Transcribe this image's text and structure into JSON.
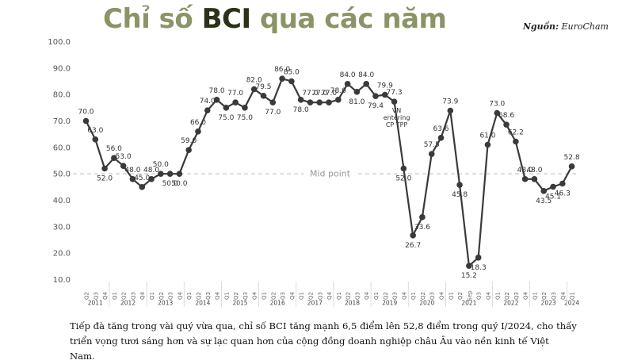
{
  "header": {
    "title_part1": "Chỉ số ",
    "title_part2": "BCI",
    "title_part3": " qua các năm",
    "source_label": "Nguồn:",
    "source_value": "EuroCham"
  },
  "caption": "Tiếp đà tăng trong vài quý vừa qua, chỉ số BCI tăng mạnh 6,5 điểm lên 52,8 điểm trong quý I/2024, cho thấy triển vọng tươi sáng hơn và sự lạc quan hơn của cộng đồng doanh nghiệp châu Âu vào nền kinh tế Việt Nam.",
  "chart_data": {
    "type": "line",
    "title": "Chỉ số BCI qua các năm",
    "ylim": [
      10,
      100
    ],
    "yticks": [
      "10.0",
      "20.0",
      "30.0",
      "40.0",
      "50.0",
      "60.0",
      "70.0",
      "80.0",
      "90.0",
      "100.0"
    ],
    "grid": false,
    "colors": {
      "line": "#3a3a3a",
      "marker": "#3a3a3a",
      "midline": "#cccccc",
      "text": "#555555"
    },
    "series": [
      {
        "values": [
          70.0,
          63.0,
          52.0,
          56.0,
          53.0,
          48.0,
          45.0,
          48.0,
          50.0,
          50.0,
          50.0,
          59.0,
          66.0,
          74.0,
          78.0,
          75.0,
          77.0,
          75.0,
          82.0,
          79.5,
          77.0,
          86.0,
          85.0,
          78.0,
          77.0,
          77.0,
          77.0,
          78.0,
          84.0,
          81.0,
          84.0,
          79.4,
          79.9,
          77.3,
          52.0,
          26.7,
          33.6,
          57.5,
          63.6,
          73.9,
          45.8,
          15.2,
          18.3,
          61.0,
          73.0,
          68.6,
          62.2,
          48.0,
          48.0,
          43.5,
          45.1,
          46.3,
          52.8
        ],
        "labels": [
          "70.0",
          "63.0",
          "52.0",
          "56.0",
          "53.0",
          "48.0",
          "45.0",
          "48.0",
          "50.0",
          "50.0",
          "50.0",
          "59.0",
          "66.0",
          "74.0",
          "78.0",
          "75.0",
          "77.0",
          "75.0",
          "82.0",
          "79.5",
          "77.0",
          "86.0",
          "85.0",
          "78.0",
          "77.0",
          "77.0",
          "77.0",
          "78.0",
          "84.0",
          "81.0",
          "84.0",
          "79.4",
          "79.9",
          "77.3",
          "52.0",
          "26.7",
          "33.6",
          "57.5",
          "63.6",
          "73.9",
          "45.8",
          "15.2",
          "18.3",
          "61.0",
          "73.0",
          "68.6",
          "62.2",
          "48.0",
          "48.0",
          "43.5",
          "45.1",
          "46.3",
          "52.8"
        ]
      }
    ],
    "quarters": [
      "Q2",
      "Q3",
      "Q4",
      "Q1",
      "Q2",
      "Q3",
      "Q4",
      "Q1",
      "Q2",
      "Q3",
      "Q4",
      "Q1",
      "Q2",
      "Q3",
      "Q4",
      "Q1",
      "Q2",
      "Q3",
      "Q4",
      "Q1",
      "Q2",
      "Q3",
      "Q4",
      "Q1",
      "Q2",
      "Q3",
      "Q4",
      "Q1",
      "Q2",
      "Q3",
      "Q4",
      "Q1",
      "Q2",
      "Q3",
      "Q4",
      "Q1",
      "Q2",
      "Q3",
      "Q4",
      "Q1",
      "Q2",
      "Sep",
      "Q3",
      "Q4",
      "Q1",
      "Q2",
      "Q3",
      "Q4",
      "Q1",
      "Q2",
      "Q3",
      "Q4",
      "Q1"
    ],
    "years": [
      {
        "label": "2011",
        "start": 0,
        "end": 2
      },
      {
        "label": "2012",
        "start": 3,
        "end": 6
      },
      {
        "label": "2013",
        "start": 7,
        "end": 10
      },
      {
        "label": "2014",
        "start": 11,
        "end": 14
      },
      {
        "label": "2015",
        "start": 15,
        "end": 18
      },
      {
        "label": "2016",
        "start": 19,
        "end": 22
      },
      {
        "label": "2017",
        "start": 23,
        "end": 26
      },
      {
        "label": "2018",
        "start": 27,
        "end": 30
      },
      {
        "label": "2019",
        "start": 31,
        "end": 34
      },
      {
        "label": "2020",
        "start": 35,
        "end": 38
      },
      {
        "label": "2021",
        "start": 39,
        "end": 43
      },
      {
        "label": "2022",
        "start": 44,
        "end": 47
      },
      {
        "label": "2023",
        "start": 48,
        "end": 51
      },
      {
        "label": "2024",
        "start": 52,
        "end": 52
      }
    ],
    "reference_line": {
      "value": 50,
      "label": "Mid point"
    },
    "annotations": [
      {
        "index": 33,
        "lines": [
          "VN",
          "entering",
          "CP TPP"
        ]
      }
    ]
  }
}
